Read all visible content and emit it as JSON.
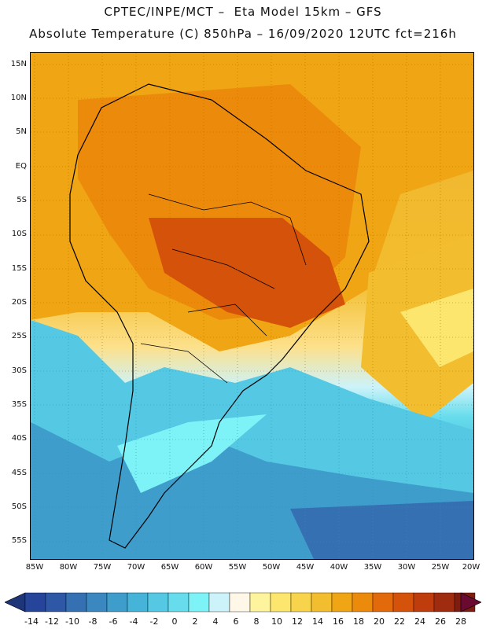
{
  "title_line1": "CPTEC/INPE/MCT –  Eta Model 15km – GFS",
  "title_line2": "Absolute Temperature (C) 850hPa – 16/09/2020 12UTC fct=216h",
  "lat_labels": [
    "15N",
    "10N",
    "5N",
    "EQ",
    "5S",
    "10S",
    "15S",
    "20S",
    "25S",
    "30S",
    "35S",
    "40S",
    "45S",
    "50S",
    "55S"
  ],
  "lon_labels": [
    "85W",
    "80W",
    "75W",
    "70W",
    "65W",
    "60W",
    "55W",
    "50W",
    "45W",
    "40W",
    "35W",
    "30W",
    "25W",
    "20W"
  ],
  "colorbar": {
    "labels": [
      "-14",
      "-12",
      "-10",
      "-8",
      "-6",
      "-4",
      "-2",
      "0",
      "2",
      "4",
      "6",
      "8",
      "10",
      "12",
      "14",
      "16",
      "18",
      "20",
      "22",
      "24",
      "26",
      "28"
    ],
    "colors": [
      "#26449a",
      "#2e57a6",
      "#3570b3",
      "#3b87bf",
      "#3f9dcc",
      "#46b3d8",
      "#55c8e3",
      "#66dcec",
      "#7ef3f7",
      "#cdf3fa",
      "#fff8e8",
      "#fff49e",
      "#fde66e",
      "#f7d44c",
      "#f2bd2e",
      "#efa514",
      "#ec8a0c",
      "#e26a0a",
      "#d5520a",
      "#bf3c0c",
      "#a02c10",
      "#7e1c10"
    ],
    "low_color": "#1e3578",
    "high_color": "#6a0a30"
  }
}
